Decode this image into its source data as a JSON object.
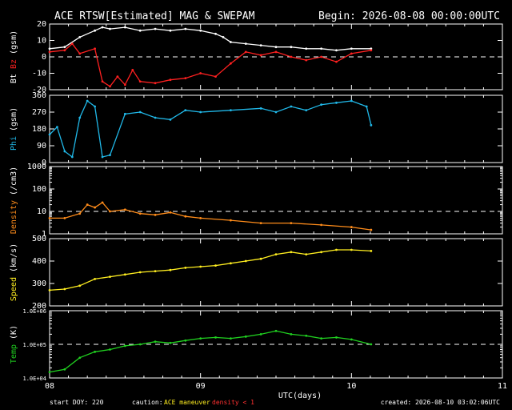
{
  "header": {
    "title": "ACE RTSW[Estimated] MAG & SWEPAM",
    "begin": "Begin: 2026-08-08 00:00:00UTC"
  },
  "footer": {
    "start_doy": "start DOY: 220",
    "caution_label": "caution:",
    "caution_maneuver": "ACE maneuver",
    "caution_density": "density < 1",
    "created": "created: 2026-08-10 03:02:06UTC"
  },
  "colors": {
    "bt": "#ffffff",
    "bz": "#ff2020",
    "phi": "#20b8e8",
    "density": "#ff8c1a",
    "speed": "#ffee20",
    "temp": "#20d020",
    "axes": "#ffffff",
    "caution": "#ffee20",
    "density_warn": "#ff3030"
  },
  "chart_data": {
    "type": "line",
    "x_axis": {
      "label": "UTC(days)",
      "range": [
        8,
        11
      ],
      "ticks": [
        "08",
        "09",
        "10",
        "11"
      ],
      "data_end": 10.13
    },
    "panels": [
      {
        "id": "mag",
        "ylabel_parts": [
          {
            "text": "Bt",
            "color": "#ffffff"
          },
          {
            "text": " Bz",
            "color": "#ff2020"
          },
          {
            "text": " (gsm)",
            "color": "#ffffff"
          }
        ],
        "ylim": [
          -20,
          20
        ],
        "ticks": [
          "-20",
          "-10",
          "0",
          "10",
          "20"
        ],
        "tick_values": [
          -20,
          -10,
          0,
          10,
          20
        ],
        "dashed_at": 0,
        "series": [
          {
            "name": "Bt",
            "color": "#ffffff",
            "x": [
              8.0,
              8.1,
              8.2,
              8.3,
              8.35,
              8.4,
              8.5,
              8.6,
              8.7,
              8.8,
              8.9,
              9.0,
              9.1,
              9.15,
              9.2,
              9.3,
              9.4,
              9.5,
              9.6,
              9.7,
              9.8,
              9.9,
              10.0,
              10.13
            ],
            "y": [
              5,
              6,
              12,
              16,
              18,
              17,
              18,
              16,
              17,
              16,
              17,
              16,
              14,
              12,
              9,
              8,
              7,
              6,
              6,
              5,
              5,
              4,
              5,
              5
            ]
          },
          {
            "name": "Bz",
            "color": "#ff2020",
            "x": [
              8.0,
              8.1,
              8.15,
              8.2,
              8.3,
              8.35,
              8.4,
              8.45,
              8.5,
              8.55,
              8.6,
              8.7,
              8.8,
              8.9,
              9.0,
              9.1,
              9.2,
              9.3,
              9.4,
              9.5,
              9.6,
              9.7,
              9.8,
              9.9,
              10.0,
              10.13
            ],
            "y": [
              3,
              4,
              8,
              2,
              5,
              -15,
              -18,
              -12,
              -17,
              -8,
              -15,
              -16,
              -14,
              -13,
              -10,
              -12,
              -4,
              3,
              1,
              3,
              0,
              -2,
              0,
              -3,
              2,
              4
            ]
          }
        ]
      },
      {
        "id": "phi",
        "ylabel_parts": [
          {
            "text": "Phi",
            "color": "#20b8e8"
          },
          {
            "text": " (gsm)",
            "color": "#ffffff"
          }
        ],
        "ylim": [
          0,
          360
        ],
        "ticks": [
          "0",
          "90",
          "180",
          "270",
          "360"
        ],
        "tick_values": [
          0,
          90,
          180,
          270,
          360
        ],
        "series": [
          {
            "name": "Phi",
            "color": "#20b8e8",
            "x": [
              8.0,
              8.05,
              8.1,
              8.15,
              8.2,
              8.25,
              8.3,
              8.35,
              8.4,
              8.5,
              8.6,
              8.7,
              8.8,
              8.9,
              9.0,
              9.2,
              9.4,
              9.5,
              9.6,
              9.7,
              9.8,
              9.9,
              10.0,
              10.1,
              10.13
            ],
            "y": [
              150,
              190,
              60,
              30,
              240,
              330,
              300,
              30,
              40,
              260,
              270,
              240,
              230,
              280,
              270,
              280,
              290,
              270,
              300,
              280,
              310,
              320,
              330,
              300,
              200
            ]
          }
        ]
      },
      {
        "id": "density",
        "ylabel_parts": [
          {
            "text": "Density",
            "color": "#ff8c1a"
          },
          {
            "text": " (/cm3)",
            "color": "#ffffff"
          }
        ],
        "scale": "log",
        "ylim": [
          1,
          1000
        ],
        "ticks": [
          "1",
          "10",
          "100",
          "1000"
        ],
        "tick_values": [
          1,
          10,
          100,
          1000
        ],
        "dashed_at": 10,
        "series": [
          {
            "name": "Density",
            "color": "#ff8c1a",
            "x": [
              8.0,
              8.1,
              8.2,
              8.25,
              8.3,
              8.35,
              8.4,
              8.5,
              8.6,
              8.7,
              8.8,
              8.9,
              9.0,
              9.2,
              9.4,
              9.6,
              9.8,
              10.0,
              10.13
            ],
            "y": [
              5,
              5,
              8,
              20,
              15,
              25,
              10,
              12,
              8,
              7,
              9,
              6,
              5,
              4,
              3,
              3,
              2.5,
              2,
              1.5
            ]
          }
        ]
      },
      {
        "id": "speed",
        "ylabel_parts": [
          {
            "text": "Speed",
            "color": "#ffee20"
          },
          {
            "text": " (km/s)",
            "color": "#ffffff"
          }
        ],
        "ylim": [
          200,
          500
        ],
        "ticks": [
          "200",
          "300",
          "400",
          "500"
        ],
        "tick_values": [
          200,
          300,
          400,
          500
        ],
        "series": [
          {
            "name": "Speed",
            "color": "#ffee20",
            "x": [
              8.0,
              8.1,
              8.2,
              8.3,
              8.4,
              8.5,
              8.6,
              8.7,
              8.8,
              8.9,
              9.0,
              9.1,
              9.2,
              9.3,
              9.4,
              9.5,
              9.6,
              9.7,
              9.8,
              9.9,
              10.0,
              10.13
            ],
            "y": [
              270,
              275,
              290,
              320,
              330,
              340,
              350,
              355,
              360,
              370,
              375,
              380,
              390,
              400,
              410,
              430,
              440,
              430,
              440,
              450,
              450,
              445
            ]
          }
        ]
      },
      {
        "id": "temp",
        "ylabel_parts": [
          {
            "text": "Temp",
            "color": "#20d020"
          },
          {
            "text": " (K)",
            "color": "#ffffff"
          }
        ],
        "scale": "log",
        "ylim": [
          10000,
          1000000
        ],
        "ticks": [
          "1.0E+04",
          "1.0E+05",
          "1.0E+06"
        ],
        "tick_values": [
          10000,
          100000,
          1000000
        ],
        "dashed_at": 100000,
        "series": [
          {
            "name": "Temp",
            "color": "#20d020",
            "x": [
              8.0,
              8.1,
              8.2,
              8.3,
              8.4,
              8.5,
              8.6,
              8.7,
              8.8,
              8.9,
              9.0,
              9.1,
              9.2,
              9.3,
              9.4,
              9.5,
              9.6,
              9.7,
              9.8,
              9.9,
              10.0,
              10.13
            ],
            "y": [
              15000,
              18000,
              40000,
              60000,
              70000,
              90000,
              100000,
              120000,
              110000,
              130000,
              150000,
              160000,
              150000,
              170000,
              200000,
              250000,
              200000,
              180000,
              150000,
              160000,
              140000,
              100000
            ]
          }
        ]
      }
    ]
  }
}
